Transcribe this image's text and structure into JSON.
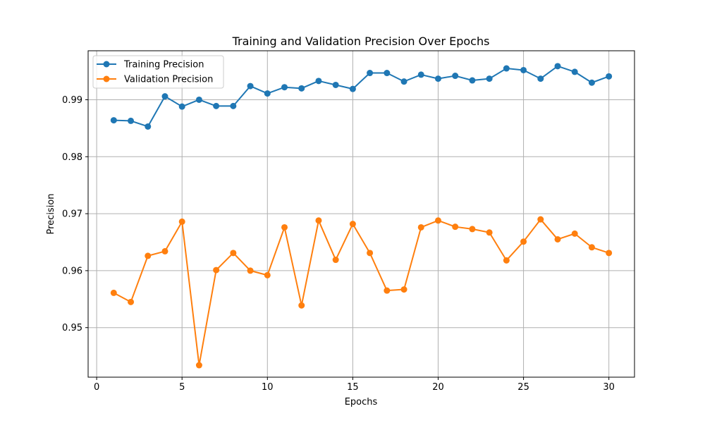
{
  "chart_data": {
    "type": "line",
    "title": "Training and Validation Precision Over Epochs",
    "xlabel": "Epochs",
    "ylabel": "Precision",
    "xlim": [
      -0.5,
      31.5
    ],
    "ylim": [
      0.9413,
      0.9986
    ],
    "xticks": [
      0,
      5,
      10,
      15,
      20,
      25,
      30
    ],
    "xtick_labels": [
      "0",
      "5",
      "10",
      "15",
      "20",
      "25",
      "30"
    ],
    "yticks": [
      0.95,
      0.96,
      0.97,
      0.98,
      0.99
    ],
    "ytick_labels": [
      "0.95",
      "0.96",
      "0.97",
      "0.98",
      "0.99"
    ],
    "grid": true,
    "legend_position": "upper-left",
    "x": [
      1,
      2,
      3,
      4,
      5,
      6,
      7,
      8,
      9,
      10,
      11,
      12,
      13,
      14,
      15,
      16,
      17,
      18,
      19,
      20,
      21,
      22,
      23,
      24,
      25,
      26,
      27,
      28,
      29,
      30
    ],
    "series": [
      {
        "name": "Training Precision",
        "color": "#1f77b4",
        "values": [
          0.9864,
          0.9863,
          0.9853,
          0.9906,
          0.9888,
          0.99,
          0.9889,
          0.9889,
          0.9924,
          0.9911,
          0.9922,
          0.992,
          0.9933,
          0.9926,
          0.9919,
          0.9947,
          0.9947,
          0.9932,
          0.9944,
          0.9937,
          0.9942,
          0.9934,
          0.9937,
          0.9955,
          0.9952,
          0.9937,
          0.9959,
          0.9949,
          0.993,
          0.9941
        ]
      },
      {
        "name": "Validation Precision",
        "color": "#ff7f0e",
        "values": [
          0.9561,
          0.9545,
          0.9626,
          0.9634,
          0.9686,
          0.9434,
          0.9601,
          0.9631,
          0.96,
          0.9592,
          0.9676,
          0.9539,
          0.9688,
          0.9619,
          0.9682,
          0.9631,
          0.9565,
          0.9567,
          0.9676,
          0.9688,
          0.9677,
          0.9673,
          0.9667,
          0.9618,
          0.9651,
          0.969,
          0.9655,
          0.9665,
          0.9641,
          0.9631
        ]
      }
    ]
  }
}
